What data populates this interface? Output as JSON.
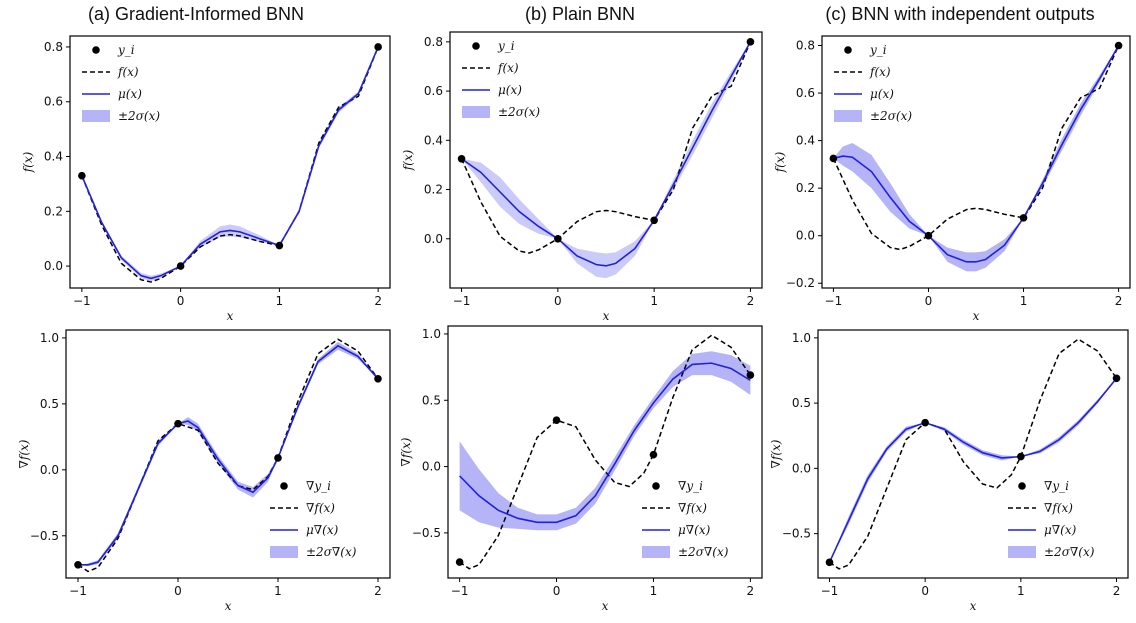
{
  "titles": [
    "(a) Gradient-Informed BNN",
    "(b) Plain BNN",
    "(c) BNN with independent outputs"
  ],
  "colors": {
    "mean": "#2020e0",
    "band": "#6a6af0",
    "truth": "#000000",
    "point": "#000000"
  },
  "chart_data": [
    {
      "type": "line",
      "name": "a-top",
      "xlabel": "x",
      "ylabel": "f(x)",
      "xlim": [
        -1.12,
        2.12
      ],
      "ylim": [
        -0.08,
        0.84
      ],
      "xticks": [
        -1,
        0,
        1,
        2
      ],
      "yticks": [
        0.0,
        0.2,
        0.4,
        0.6,
        0.8
      ],
      "legend": [
        "y_i",
        "f(x)",
        "μ(x)",
        "±2σ(x)"
      ],
      "legend_loc": "upper-left",
      "points": {
        "x": [
          -1,
          0,
          1,
          2
        ],
        "y": [
          0.33,
          0.0,
          0.075,
          0.8
        ]
      },
      "truth": {
        "x": [
          -1,
          -0.8,
          -0.6,
          -0.4,
          -0.3,
          -0.2,
          0,
          0.2,
          0.4,
          0.5,
          0.6,
          0.8,
          1,
          1.2,
          1.4,
          1.6,
          1.8,
          2
        ],
        "y": [
          0.33,
          0.15,
          0.01,
          -0.05,
          -0.058,
          -0.045,
          0.0,
          0.07,
          0.11,
          0.115,
          0.11,
          0.09,
          0.075,
          0.2,
          0.45,
          0.58,
          0.62,
          0.8
        ]
      },
      "mean": {
        "x": [
          -1,
          -0.8,
          -0.6,
          -0.4,
          -0.3,
          -0.2,
          0,
          0.2,
          0.4,
          0.5,
          0.6,
          0.8,
          1,
          1.2,
          1.4,
          1.6,
          1.8,
          2
        ],
        "y": [
          0.33,
          0.16,
          0.03,
          -0.035,
          -0.045,
          -0.035,
          0.0,
          0.08,
          0.125,
          0.13,
          0.125,
          0.1,
          0.075,
          0.2,
          0.44,
          0.57,
          0.63,
          0.8
        ]
      },
      "sigma2": [
        0.0,
        0.005,
        0.008,
        0.01,
        0.01,
        0.008,
        0.0,
        0.012,
        0.02,
        0.022,
        0.02,
        0.012,
        0.0,
        0.008,
        0.01,
        0.01,
        0.008,
        0.0
      ]
    },
    {
      "type": "line",
      "name": "b-top",
      "xlabel": "x",
      "ylabel": "f(x)",
      "xlim": [
        -1.12,
        2.12
      ],
      "ylim": [
        -0.2,
        0.84
      ],
      "xticks": [
        -1,
        0,
        1,
        2
      ],
      "yticks": [
        0.0,
        0.2,
        0.4,
        0.6,
        0.8
      ],
      "legend": [
        "y_i",
        "f(x)",
        "μ(x)",
        "±2σ(x)"
      ],
      "legend_loc": "upper-left",
      "points": {
        "x": [
          -1,
          0,
          1,
          2
        ],
        "y": [
          0.325,
          0.0,
          0.075,
          0.8
        ]
      },
      "truth": {
        "x": [
          -1,
          -0.8,
          -0.6,
          -0.4,
          -0.3,
          -0.2,
          0,
          0.2,
          0.4,
          0.5,
          0.6,
          0.8,
          1,
          1.2,
          1.4,
          1.6,
          1.8,
          2
        ],
        "y": [
          0.325,
          0.15,
          0.01,
          -0.05,
          -0.058,
          -0.045,
          0.0,
          0.07,
          0.11,
          0.115,
          0.11,
          0.09,
          0.075,
          0.2,
          0.45,
          0.58,
          0.62,
          0.8
        ]
      },
      "mean": {
        "x": [
          -1,
          -0.8,
          -0.6,
          -0.4,
          -0.2,
          0,
          0.2,
          0.4,
          0.5,
          0.6,
          0.8,
          1,
          1.2,
          1.4,
          1.6,
          1.8,
          2
        ],
        "y": [
          0.325,
          0.27,
          0.19,
          0.11,
          0.05,
          0.0,
          -0.07,
          -0.105,
          -0.11,
          -0.1,
          -0.04,
          0.075,
          0.22,
          0.37,
          0.52,
          0.66,
          0.8
        ]
      },
      "sigma2": [
        0.0,
        0.04,
        0.06,
        0.05,
        0.03,
        0.0,
        0.03,
        0.05,
        0.05,
        0.045,
        0.03,
        0.0,
        0.02,
        0.03,
        0.03,
        0.02,
        0.0
      ]
    },
    {
      "type": "line",
      "name": "c-top",
      "xlabel": "x",
      "ylabel": "f(x)",
      "xlim": [
        -1.12,
        2.12
      ],
      "ylim": [
        -0.22,
        0.84
      ],
      "xticks": [
        -1,
        0,
        1,
        2
      ],
      "yticks": [
        -0.2,
        0.0,
        0.2,
        0.4,
        0.6,
        0.8
      ],
      "legend": [
        "y_i",
        "f(x)",
        "μ(x)",
        "±2σ(x)"
      ],
      "legend_loc": "upper-left",
      "points": {
        "x": [
          -1,
          0,
          1,
          2
        ],
        "y": [
          0.325,
          0.0,
          0.075,
          0.8
        ]
      },
      "truth": {
        "x": [
          -1,
          -0.8,
          -0.6,
          -0.4,
          -0.3,
          -0.2,
          0,
          0.2,
          0.4,
          0.5,
          0.6,
          0.8,
          1,
          1.2,
          1.4,
          1.6,
          1.8,
          2
        ],
        "y": [
          0.325,
          0.15,
          0.01,
          -0.05,
          -0.058,
          -0.045,
          0.0,
          0.07,
          0.11,
          0.115,
          0.11,
          0.09,
          0.075,
          0.2,
          0.45,
          0.58,
          0.62,
          0.8
        ]
      },
      "mean": {
        "x": [
          -1,
          -0.9,
          -0.8,
          -0.6,
          -0.4,
          -0.2,
          0,
          0.2,
          0.4,
          0.5,
          0.6,
          0.8,
          1,
          1.2,
          1.4,
          1.6,
          1.8,
          2
        ],
        "y": [
          0.325,
          0.335,
          0.33,
          0.27,
          0.16,
          0.06,
          0.0,
          -0.08,
          -0.11,
          -0.11,
          -0.1,
          -0.04,
          0.075,
          0.22,
          0.38,
          0.53,
          0.66,
          0.8
        ]
      },
      "sigma2": [
        0.0,
        0.04,
        0.06,
        0.07,
        0.06,
        0.03,
        0.0,
        0.03,
        0.04,
        0.04,
        0.035,
        0.025,
        0.0,
        0.015,
        0.025,
        0.025,
        0.015,
        0.0
      ]
    },
    {
      "type": "line",
      "name": "a-bottom",
      "xlabel": "x",
      "ylabel": "∇f(x)",
      "xlim": [
        -1.12,
        2.12
      ],
      "ylim": [
        -0.82,
        1.06
      ],
      "xticks": [
        -1,
        0,
        1,
        2
      ],
      "yticks": [
        -0.5,
        0.0,
        0.5,
        1.0
      ],
      "legend": [
        "∇y_i",
        "∇f(x)",
        "μ∇(x)",
        "±2σ∇(x)"
      ],
      "legend_loc": "lower-right",
      "points": {
        "x": [
          -1,
          0,
          1,
          2
        ],
        "y": [
          -0.72,
          0.35,
          0.09,
          0.69
        ]
      },
      "truth": {
        "x": [
          -1,
          -0.9,
          -0.8,
          -0.6,
          -0.4,
          -0.2,
          0,
          0.2,
          0.4,
          0.6,
          0.75,
          0.9,
          1,
          1.2,
          1.4,
          1.6,
          1.8,
          2
        ],
        "y": [
          -0.72,
          -0.77,
          -0.74,
          -0.52,
          -0.15,
          0.22,
          0.35,
          0.3,
          0.05,
          -0.12,
          -0.15,
          -0.05,
          0.09,
          0.52,
          0.88,
          0.99,
          0.9,
          0.69
        ]
      },
      "mean": {
        "x": [
          -1,
          -0.9,
          -0.8,
          -0.6,
          -0.4,
          -0.2,
          0,
          0.1,
          0.2,
          0.4,
          0.6,
          0.75,
          0.9,
          1,
          1.2,
          1.4,
          1.6,
          1.8,
          2
        ],
        "y": [
          -0.72,
          -0.72,
          -0.7,
          -0.5,
          -0.15,
          0.2,
          0.35,
          0.37,
          0.32,
          0.08,
          -0.12,
          -0.17,
          -0.06,
          0.09,
          0.48,
          0.82,
          0.94,
          0.86,
          0.69
        ]
      },
      "sigma2": [
        0.0,
        0.01,
        0.015,
        0.02,
        0.02,
        0.02,
        0.0,
        0.03,
        0.03,
        0.03,
        0.03,
        0.04,
        0.03,
        0.0,
        0.02,
        0.02,
        0.03,
        0.02,
        0.0
      ]
    },
    {
      "type": "line",
      "name": "b-bottom",
      "xlabel": "x",
      "ylabel": "∇f(x)",
      "xlim": [
        -1.12,
        2.12
      ],
      "ylim": [
        -0.84,
        1.06
      ],
      "xticks": [
        -1,
        0,
        1,
        2
      ],
      "yticks": [
        -0.5,
        0.0,
        0.5,
        1.0
      ],
      "legend": [
        "∇y_i",
        "∇f(x)",
        "μ∇(x)",
        "±2σ∇(x)"
      ],
      "legend_loc": "lower-right",
      "points": {
        "x": [
          -1,
          0,
          1,
          2
        ],
        "y": [
          -0.72,
          0.35,
          0.09,
          0.69
        ]
      },
      "truth": {
        "x": [
          -1,
          -0.9,
          -0.8,
          -0.6,
          -0.4,
          -0.2,
          0,
          0.2,
          0.4,
          0.6,
          0.75,
          0.9,
          1,
          1.2,
          1.4,
          1.6,
          1.8,
          2
        ],
        "y": [
          -0.72,
          -0.77,
          -0.74,
          -0.52,
          -0.15,
          0.22,
          0.35,
          0.3,
          0.05,
          -0.12,
          -0.15,
          -0.05,
          0.09,
          0.52,
          0.88,
          0.99,
          0.9,
          0.69
        ]
      },
      "mean": {
        "x": [
          -1,
          -0.8,
          -0.6,
          -0.4,
          -0.2,
          0,
          0.2,
          0.4,
          0.6,
          0.8,
          1,
          1.2,
          1.4,
          1.6,
          1.8,
          2
        ],
        "y": [
          -0.07,
          -0.22,
          -0.33,
          -0.39,
          -0.42,
          -0.42,
          -0.37,
          -0.22,
          0.02,
          0.27,
          0.48,
          0.66,
          0.77,
          0.78,
          0.74,
          0.65
        ]
      },
      "sigma2": [
        0.26,
        0.2,
        0.13,
        0.08,
        0.06,
        0.06,
        0.06,
        0.06,
        0.05,
        0.04,
        0.04,
        0.06,
        0.08,
        0.09,
        0.1,
        0.11
      ]
    },
    {
      "type": "line",
      "name": "c-bottom",
      "xlabel": "x",
      "ylabel": "∇f(x)",
      "xlim": [
        -1.12,
        2.12
      ],
      "ylim": [
        -0.84,
        1.06
      ],
      "xticks": [
        -1,
        0,
        1,
        2
      ],
      "yticks": [
        -0.5,
        0.0,
        0.5,
        1.0
      ],
      "legend": [
        "∇y_i",
        "∇f(x)",
        "μ∇(x)",
        "±2σ∇(x)"
      ],
      "legend_loc": "lower-right",
      "points": {
        "x": [
          -1,
          0,
          1,
          2
        ],
        "y": [
          -0.72,
          0.35,
          0.09,
          0.69
        ]
      },
      "truth": {
        "x": [
          -1,
          -0.9,
          -0.8,
          -0.6,
          -0.4,
          -0.2,
          0,
          0.2,
          0.4,
          0.6,
          0.75,
          0.9,
          1,
          1.2,
          1.4,
          1.6,
          1.8,
          2
        ],
        "y": [
          -0.72,
          -0.77,
          -0.74,
          -0.52,
          -0.15,
          0.22,
          0.35,
          0.3,
          0.05,
          -0.12,
          -0.15,
          -0.05,
          0.09,
          0.52,
          0.88,
          0.99,
          0.9,
          0.69
        ]
      },
      "mean": {
        "x": [
          -1,
          -0.8,
          -0.6,
          -0.4,
          -0.2,
          0,
          0.2,
          0.4,
          0.6,
          0.8,
          1,
          1.2,
          1.4,
          1.6,
          1.8,
          2
        ],
        "y": [
          -0.72,
          -0.4,
          -0.08,
          0.15,
          0.3,
          0.35,
          0.3,
          0.2,
          0.12,
          0.08,
          0.09,
          0.13,
          0.22,
          0.35,
          0.51,
          0.69
        ]
      },
      "sigma2": [
        0.0,
        0.03,
        0.03,
        0.02,
        0.02,
        0.0,
        0.015,
        0.02,
        0.02,
        0.02,
        0.0,
        0.015,
        0.02,
        0.02,
        0.015,
        0.0
      ]
    }
  ]
}
